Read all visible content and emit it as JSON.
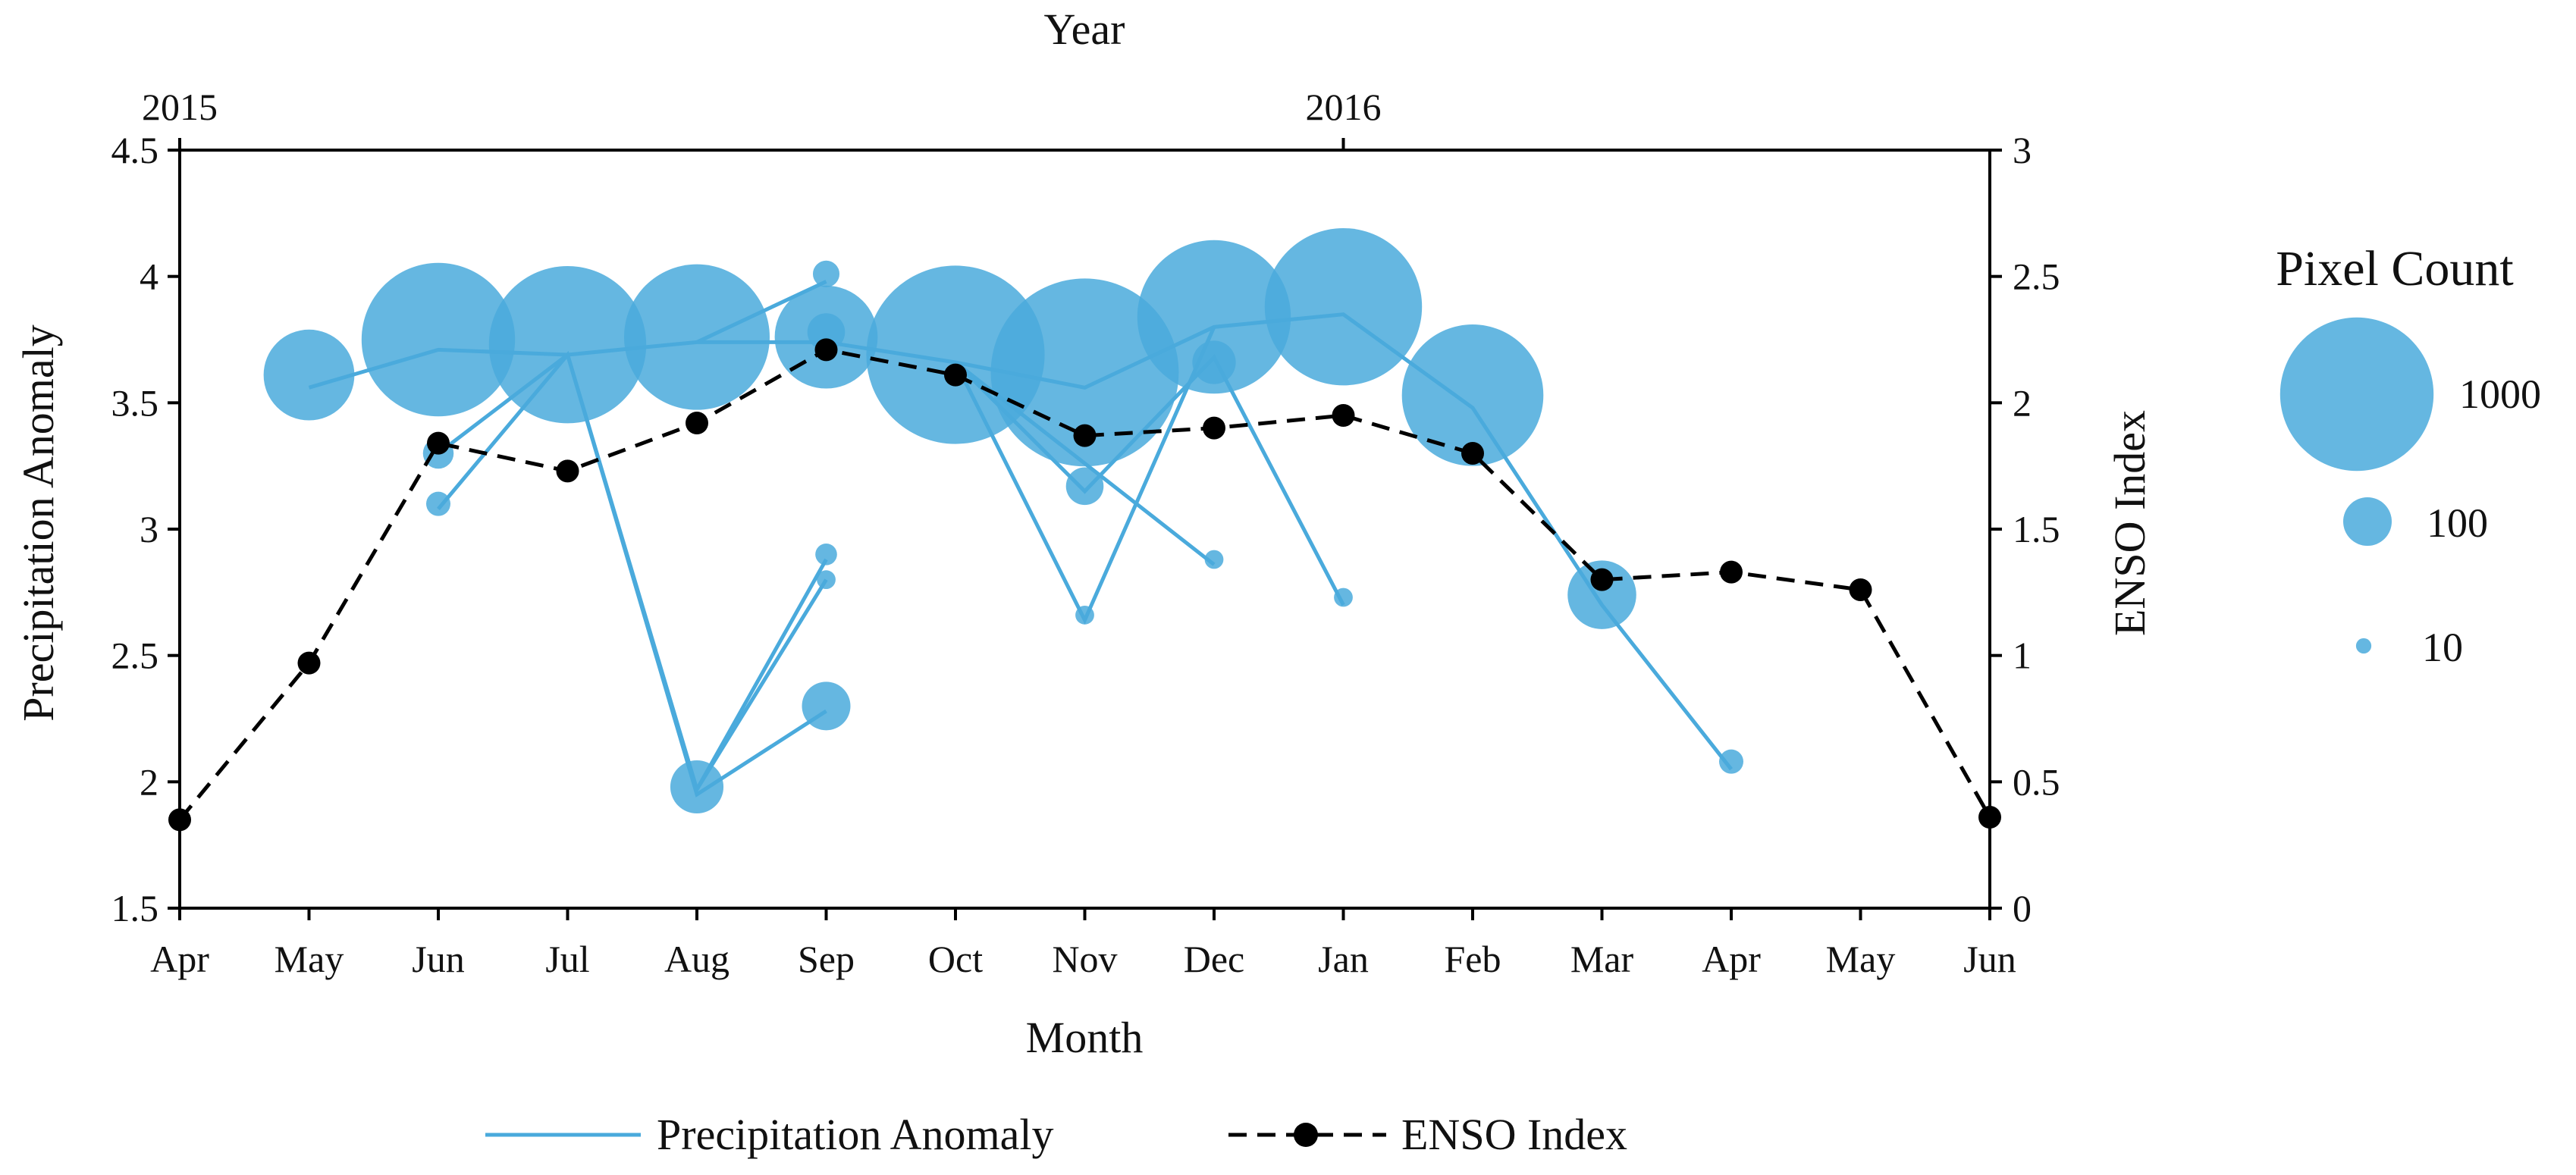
{
  "chart_data": {
    "type": "scatter",
    "xlabel": "Month",
    "top_xlabel": "Year",
    "ylabel": "Precipitation Anomaly",
    "y2label": "ENSO Index",
    "month_labels": [
      "Apr",
      "May",
      "Jun",
      "Jul",
      "Aug",
      "Sep",
      "Oct",
      "Nov",
      "Dec",
      "Jan",
      "Feb",
      "Mar",
      "Apr",
      "May",
      "Jun"
    ],
    "year_labels": [
      {
        "label": "2015",
        "month_index": 0
      },
      {
        "label": "2016",
        "month_index": 9
      }
    ],
    "y_ticks": [
      "1.5",
      "2",
      "2.5",
      "3",
      "3.5",
      "4",
      "4.5"
    ],
    "y2_ticks": [
      "0",
      "0.5",
      "1",
      "1.5",
      "2",
      "2.5",
      "3"
    ],
    "ylim": [
      1.5,
      4.5
    ],
    "y2lim": [
      0,
      3
    ],
    "series": [
      {
        "name": "Precipitation Anomaly",
        "color": "#4aaadc",
        "bubble_color": "#4aaadc",
        "main_path": [
          {
            "x": 1,
            "y": 3.56
          },
          {
            "x": 2,
            "y": 3.71
          },
          {
            "x": 3,
            "y": 3.69
          },
          {
            "x": 4,
            "y": 3.74
          },
          {
            "x": 5,
            "y": 3.74
          },
          {
            "x": 6,
            "y": 3.66
          },
          {
            "x": 7,
            "y": 3.56
          },
          {
            "x": 8,
            "y": 3.8
          },
          {
            "x": 9,
            "y": 3.85
          },
          {
            "x": 10,
            "y": 3.48
          },
          {
            "x": 11,
            "y": 2.7
          },
          {
            "x": 12,
            "y": 2.05
          }
        ],
        "branches": [
          [
            {
              "x": 2,
              "y": 3.08
            },
            {
              "x": 3,
              "y": 3.69
            },
            {
              "x": 4,
              "y": 1.95
            },
            {
              "x": 5,
              "y": 2.28
            }
          ],
          [
            {
              "x": 2,
              "y": 3.3
            },
            {
              "x": 3,
              "y": 3.69
            }
          ],
          [
            {
              "x": 3,
              "y": 3.69
            },
            {
              "x": 4,
              "y": 1.97
            },
            {
              "x": 5,
              "y": 2.8
            }
          ],
          [
            {
              "x": 4,
              "y": 1.97
            },
            {
              "x": 5,
              "y": 2.88
            }
          ],
          [
            {
              "x": 4,
              "y": 3.74
            },
            {
              "x": 5,
              "y": 3.98
            }
          ],
          [
            {
              "x": 6,
              "y": 3.66
            },
            {
              "x": 7,
              "y": 3.15
            },
            {
              "x": 8,
              "y": 3.68
            },
            {
              "x": 9,
              "y": 2.7
            }
          ],
          [
            {
              "x": 6,
              "y": 3.66
            },
            {
              "x": 7,
              "y": 2.64
            },
            {
              "x": 8,
              "y": 3.8
            }
          ],
          [
            {
              "x": 6,
              "y": 3.66
            },
            {
              "x": 8,
              "y": 2.86
            }
          ]
        ],
        "bubbles": [
          {
            "x": 1,
            "y": 3.61,
            "count": 350
          },
          {
            "x": 2,
            "y": 3.75,
            "count": 1000
          },
          {
            "x": 3,
            "y": 3.73,
            "count": 1050
          },
          {
            "x": 4,
            "y": 3.76,
            "count": 900
          },
          {
            "x": 5,
            "y": 3.76,
            "count": 450
          },
          {
            "x": 6,
            "y": 3.69,
            "count": 1350
          },
          {
            "x": 7,
            "y": 3.62,
            "count": 1500
          },
          {
            "x": 8,
            "y": 3.84,
            "count": 1000
          },
          {
            "x": 9,
            "y": 3.88,
            "count": 1050
          },
          {
            "x": 10,
            "y": 3.53,
            "count": 850
          },
          {
            "x": 11,
            "y": 2.74,
            "count": 200
          },
          {
            "x": 4,
            "y": 1.98,
            "count": 120
          },
          {
            "x": 5,
            "y": 2.3,
            "count": 100
          },
          {
            "x": 5,
            "y": 3.78,
            "count": 60
          },
          {
            "x": 5,
            "y": 4.01,
            "count": 30
          },
          {
            "x": 5,
            "y": 2.9,
            "count": 20
          },
          {
            "x": 5,
            "y": 2.8,
            "count": 15
          },
          {
            "x": 2,
            "y": 3.3,
            "count": 40
          },
          {
            "x": 2,
            "y": 3.1,
            "count": 25
          },
          {
            "x": 7,
            "y": 3.17,
            "count": 60
          },
          {
            "x": 7,
            "y": 2.66,
            "count": 15
          },
          {
            "x": 8,
            "y": 3.66,
            "count": 80
          },
          {
            "x": 8,
            "y": 2.88,
            "count": 15
          },
          {
            "x": 9,
            "y": 2.73,
            "count": 15
          },
          {
            "x": 12,
            "y": 2.08,
            "count": 25
          }
        ]
      },
      {
        "name": "ENSO Index",
        "axis": "right",
        "color": "#000000",
        "x": [
          0,
          1,
          2,
          3,
          4,
          5,
          6,
          7,
          8,
          9,
          10,
          11,
          12,
          13,
          14
        ],
        "values": [
          0.35,
          0.97,
          1.84,
          1.73,
          1.92,
          2.21,
          2.11,
          1.87,
          1.9,
          1.95,
          1.8,
          1.3,
          1.33,
          1.26,
          0.36
        ]
      }
    ],
    "legend": {
      "placement": "bottom",
      "items": [
        {
          "label": "Precipitation Anomaly",
          "style": "line",
          "color": "#4aaadc"
        },
        {
          "label": "ENSO Index",
          "style": "dashed-marker",
          "color": "#000000"
        }
      ]
    },
    "size_legend": {
      "title": "Pixel Count",
      "placement": "right",
      "items": [
        {
          "label": "1000",
          "count": 1000
        },
        {
          "label": "100",
          "count": 100
        },
        {
          "label": "10",
          "count": 10
        }
      ]
    }
  }
}
